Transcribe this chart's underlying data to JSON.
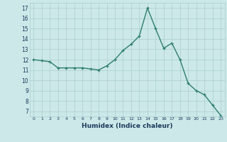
{
  "x": [
    0,
    1,
    2,
    3,
    4,
    5,
    6,
    7,
    8,
    9,
    10,
    11,
    12,
    13,
    14,
    15,
    16,
    17,
    18,
    19,
    20,
    21,
    22,
    23
  ],
  "y": [
    12.0,
    11.9,
    11.8,
    11.2,
    11.2,
    11.2,
    11.2,
    11.1,
    11.0,
    11.4,
    12.0,
    12.9,
    13.5,
    14.3,
    17.0,
    15.0,
    13.1,
    13.6,
    12.0,
    9.7,
    9.0,
    8.6,
    7.6,
    6.6
  ],
  "line_color": "#2e7d6e",
  "bg_color": "#cce8e8",
  "grid_color": "#aacfcf",
  "xlabel": "Humidex (Indice chaleur)",
  "xlim": [
    -0.5,
    23.5
  ],
  "ylim": [
    6.5,
    17.5
  ],
  "yticks": [
    7,
    8,
    9,
    10,
    11,
    12,
    13,
    14,
    15,
    16,
    17
  ],
  "xticks": [
    0,
    1,
    2,
    3,
    4,
    5,
    6,
    7,
    8,
    9,
    10,
    11,
    12,
    13,
    14,
    15,
    16,
    17,
    18,
    19,
    20,
    21,
    22,
    23
  ],
  "xtick_labels": [
    "0",
    "1",
    "2",
    "3",
    "4",
    "5",
    "6",
    "7",
    "8",
    "9",
    "10",
    "11",
    "12",
    "13",
    "14",
    "15",
    "16",
    "17",
    "18",
    "19",
    "20",
    "21",
    "22",
    "23"
  ],
  "marker": "+",
  "marker_size": 3.5,
  "line_width": 1.0
}
